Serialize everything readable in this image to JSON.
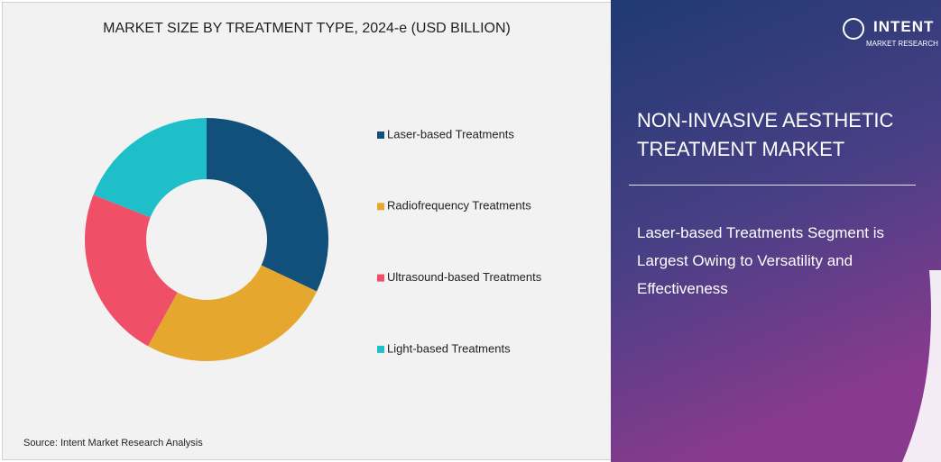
{
  "chart_data": {
    "type": "pie",
    "title": "MARKET SIZE BY TREATMENT TYPE, 2024-e (USD BILLION)",
    "categories": [
      "Laser-based Treatments",
      "Radiofrequency Treatments",
      "Ultrasound-based Treatments",
      "Light-based Treatments"
    ],
    "values": [
      32,
      26,
      23,
      19
    ],
    "colors": [
      "#10507a",
      "#e5a72e",
      "#ef5068",
      "#1fbfc9"
    ],
    "donut": true,
    "legend": "right"
  },
  "source": "Source: Intent Market Research Analysis",
  "panel": {
    "title": "NON-INVASIVE AESTHETIC TREATMENT MARKET",
    "headline": "Laser-based Treatments Segment is Largest Owing to Versatility and Effectiveness"
  },
  "logo": {
    "name": "INTENT",
    "tagline": "MARKET RESEARCH"
  }
}
